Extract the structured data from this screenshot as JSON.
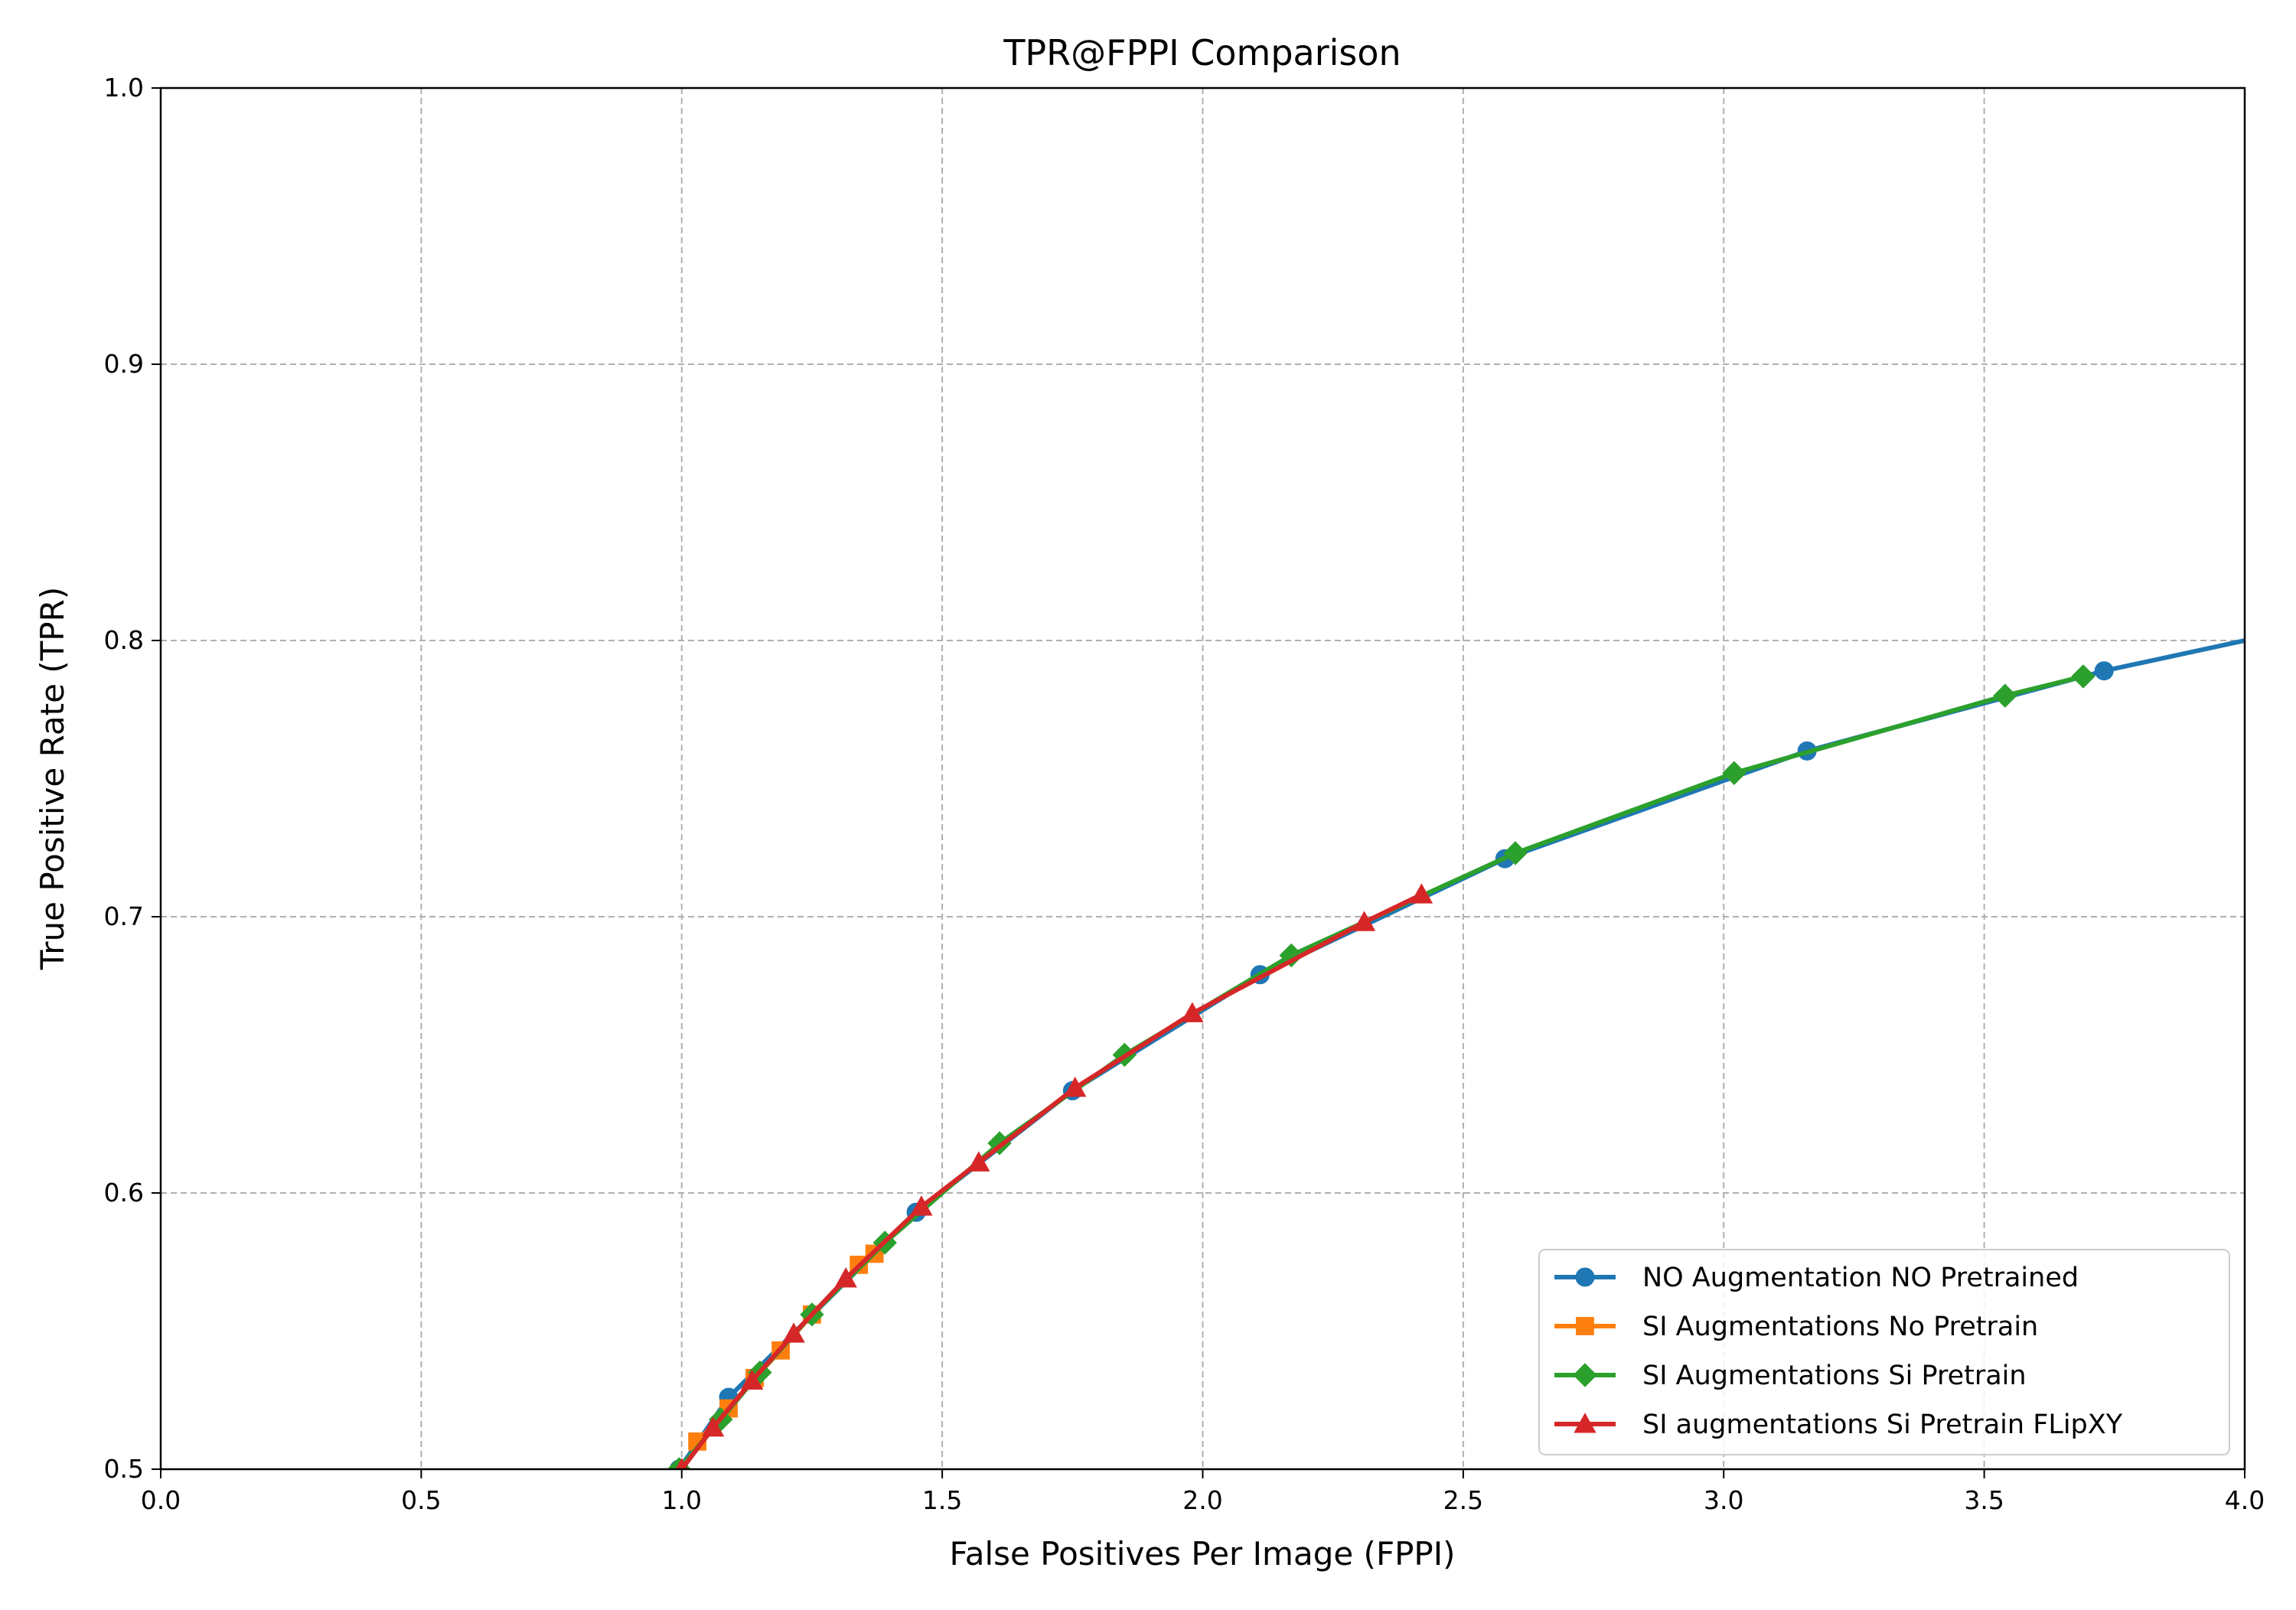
{
  "chart_data": {
    "type": "line",
    "title": "TPR@FPPI Comparison",
    "xlabel": "False Positives Per Image (FPPI)",
    "ylabel": "True Positive Rate (TPR)",
    "xlim": [
      0.0,
      4.0
    ],
    "ylim": [
      0.5,
      1.0
    ],
    "x_ticks": [
      0.0,
      0.5,
      1.0,
      1.5,
      2.0,
      2.5,
      3.0,
      3.5,
      4.0
    ],
    "x_tick_labels": [
      "0.0",
      "0.5",
      "1.0",
      "1.5",
      "2.0",
      "2.5",
      "3.0",
      "3.5",
      "4.0"
    ],
    "y_ticks": [
      0.5,
      0.6,
      0.7,
      0.8,
      0.9,
      1.0
    ],
    "y_tick_labels": [
      "0.5",
      "0.6",
      "0.7",
      "0.8",
      "0.9",
      "1.0"
    ],
    "grid": true,
    "grid_style": "dashed",
    "legend_position": "lower-right",
    "series": [
      {
        "name": "NO Augmentation NO Pretrained",
        "color": "#1f77b4",
        "marker": "circle",
        "points": [
          [
            0.995,
            0.5
          ],
          [
            1.09,
            0.526
          ],
          [
            1.45,
            0.593
          ],
          [
            1.75,
            0.637
          ],
          [
            2.11,
            0.679
          ],
          [
            2.58,
            0.721
          ],
          [
            3.16,
            0.76
          ],
          [
            3.73,
            0.789
          ],
          [
            4.05,
            0.802
          ]
        ]
      },
      {
        "name": "SI Augmentations No Pretrain",
        "color": "#ff7f0e",
        "marker": "square",
        "points": [
          [
            1.03,
            0.51
          ],
          [
            1.09,
            0.522
          ],
          [
            1.14,
            0.533
          ],
          [
            1.19,
            0.543
          ],
          [
            1.25,
            0.556
          ],
          [
            1.34,
            0.574
          ],
          [
            1.37,
            0.578
          ]
        ]
      },
      {
        "name": "SI Augmentations Si Pretrain",
        "color": "#2ca02c",
        "marker": "diamond",
        "points": [
          [
            0.995,
            0.5
          ],
          [
            1.075,
            0.518
          ],
          [
            1.15,
            0.535
          ],
          [
            1.25,
            0.556
          ],
          [
            1.39,
            0.582
          ],
          [
            1.61,
            0.618
          ],
          [
            1.85,
            0.65
          ],
          [
            2.17,
            0.686
          ],
          [
            2.6,
            0.723
          ],
          [
            3.02,
            0.752
          ],
          [
            3.54,
            0.78
          ],
          [
            3.69,
            0.787
          ]
        ]
      },
      {
        "name": "SI augmentations Si Pretrain FLipXY",
        "color": "#d62728",
        "marker": "triangle",
        "points": [
          [
            1.0,
            0.5
          ],
          [
            1.06,
            0.515
          ],
          [
            1.135,
            0.532
          ],
          [
            1.215,
            0.549
          ],
          [
            1.315,
            0.569
          ],
          [
            1.46,
            0.595
          ],
          [
            1.57,
            0.611
          ],
          [
            1.755,
            0.638
          ],
          [
            1.98,
            0.665
          ],
          [
            2.31,
            0.698
          ],
          [
            2.42,
            0.708
          ]
        ]
      }
    ]
  }
}
